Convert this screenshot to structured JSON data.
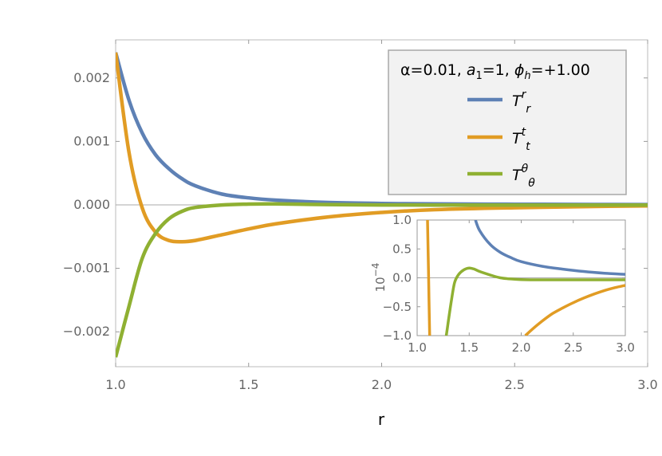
{
  "chart_data": [
    {
      "type": "line",
      "title": "",
      "xlabel": "r",
      "ylabel": "",
      "xlim": [
        1.0,
        3.0
      ],
      "ylim": [
        -0.00255,
        0.0026
      ],
      "x_ticks": [
        "1.0",
        "1.5",
        "2.0",
        "2.5",
        "3.0"
      ],
      "x_tick_values": [
        1.0,
        1.5,
        2.0,
        2.5,
        3.0
      ],
      "y_ticks": [
        "0.002",
        "0.001",
        "0.000",
        "−0.001",
        "−0.002"
      ],
      "y_tick_values": [
        0.002,
        0.001,
        0.0,
        -0.001,
        -0.002
      ],
      "legend": {
        "position": "top-right",
        "header": "α=0.01, a₁=1, ϕₕ=+1.00",
        "header_parts": {
          "alpha": "α=0.01, ",
          "a": "a",
          "a_sub": "1",
          "a_eq": "=1, ",
          "phi": "ϕ",
          "phi_sub": "h",
          "phi_eq": "=+1.00"
        }
      },
      "x": [
        1.0,
        1.05,
        1.1,
        1.15,
        1.2,
        1.25,
        1.3,
        1.4,
        1.5,
        1.6,
        1.8,
        2.0,
        2.2,
        2.5,
        2.8,
        3.0
      ],
      "series": [
        {
          "name": "T^r_r",
          "label": {
            "base": "T",
            "sup": "r",
            "sub": "r"
          },
          "color": "#5e81b5",
          "values": [
            0.0024,
            0.00165,
            0.00113,
            0.00079,
            0.00057,
            0.00041,
            0.0003,
            0.00017,
            0.00011,
            7.5e-05,
            3.8e-05,
            2.2e-05,
            1.6e-05,
            1e-05,
            6.5e-06,
            5e-06
          ]
        },
        {
          "name": "T^t_t",
          "label": {
            "base": "T",
            "sup": "t",
            "sub": "t"
          },
          "color": "#e19c24",
          "values": [
            0.0024,
            0.00083,
            -5e-05,
            -0.00043,
            -0.00056,
            -0.00058,
            -0.00056,
            -0.00047,
            -0.00038,
            -0.0003,
            -0.00019,
            -0.00012,
            -7.5e-05,
            -4.5e-05,
            -2.5e-05,
            -1.5e-05
          ]
        },
        {
          "name": "T^θ_θ",
          "label": {
            "base": "T",
            "sup": "θ",
            "sub": "θ"
          },
          "color": "#8fb032",
          "values": [
            -0.0024,
            -0.0016,
            -0.00084,
            -0.00045,
            -0.00022,
            -0.0001,
            -4e-05,
            -2e-06,
            1.2e-05,
            1.5e-05,
            5e-06,
            -1.5e-06,
            -3e-06,
            -3e-06,
            -3e-06,
            -3e-06
          ]
        }
      ]
    },
    {
      "type": "line",
      "title": "",
      "xlabel": "",
      "ylabel": "10⁻⁴",
      "ylabel_parts": {
        "base": "10",
        "sup": "−4"
      },
      "xlim": [
        1.0,
        3.0
      ],
      "ylim": [
        -1.0,
        1.0
      ],
      "x_ticks": [
        "1.0",
        "1.5",
        "2.0",
        "2.5",
        "3.0"
      ],
      "x_tick_values": [
        1.0,
        1.5,
        2.0,
        2.5,
        3.0
      ],
      "y_ticks": [
        "1.0",
        "0.5",
        "0.0",
        "−0.5",
        "−1.0"
      ],
      "y_tick_values": [
        1.0,
        0.5,
        0.0,
        -0.5,
        -1.0
      ],
      "series": [
        {
          "name": "T^r_r",
          "color": "#5e81b5",
          "x": [
            1.56,
            1.6,
            1.7,
            1.8,
            1.9,
            2.0,
            2.2,
            2.4,
            2.6,
            2.8,
            3.0
          ],
          "values": [
            1.0,
            0.82,
            0.58,
            0.44,
            0.35,
            0.28,
            0.2,
            0.15,
            0.11,
            0.08,
            0.06
          ]
        },
        {
          "name": "T^t_t",
          "color": "#e19c24",
          "x": [
            2.04,
            2.1,
            2.2,
            2.3,
            2.4,
            2.5,
            2.6,
            2.7,
            2.8,
            2.9,
            3.0
          ],
          "values": [
            -1.0,
            -0.9,
            -0.75,
            -0.62,
            -0.52,
            -0.43,
            -0.35,
            -0.28,
            -0.22,
            -0.17,
            -0.13
          ]
        },
        {
          "name": "T^t_t (steep branch)",
          "color": "#e19c24",
          "x": [
            1.1,
            1.11,
            1.12
          ],
          "values": [
            1.0,
            0.0,
            -1.0
          ]
        },
        {
          "name": "T^θ_θ",
          "color": "#8fb032",
          "x": [
            1.28,
            1.3,
            1.33,
            1.36,
            1.4,
            1.45,
            1.5,
            1.55,
            1.6,
            1.7,
            1.8,
            1.9,
            2.0,
            2.2,
            2.5,
            2.8,
            3.0
          ],
          "values": [
            -1.0,
            -0.75,
            -0.38,
            -0.08,
            0.06,
            0.14,
            0.17,
            0.15,
            0.11,
            0.05,
            0.0,
            -0.02,
            -0.03,
            -0.035,
            -0.035,
            -0.035,
            -0.035
          ]
        }
      ]
    }
  ]
}
